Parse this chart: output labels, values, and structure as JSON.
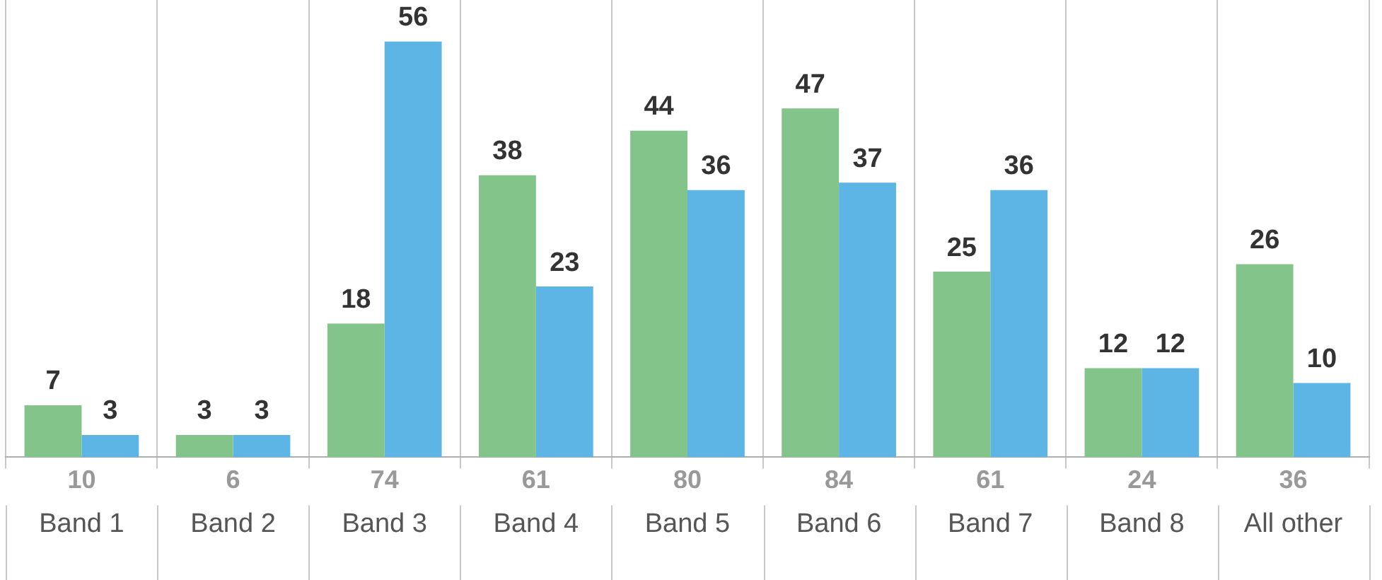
{
  "chart_data": {
    "type": "bar",
    "categories": [
      "Band 1",
      "Band 2",
      "Band 3",
      "Band 4",
      "Band 5",
      "Band 6",
      "Band 7",
      "Band 8",
      "All other"
    ],
    "series": [
      {
        "color": "#82c48a",
        "values": [
          7,
          3,
          18,
          38,
          44,
          47,
          25,
          12,
          26
        ]
      },
      {
        "color": "#5db5e5",
        "values": [
          3,
          3,
          56,
          23,
          36,
          37,
          36,
          12,
          10
        ]
      }
    ],
    "totals": [
      "10",
      "6",
      "74",
      "61",
      "80",
      "84",
      "61",
      "24",
      "36"
    ],
    "data_labels": true,
    "grid": "x",
    "legend": false
  }
}
